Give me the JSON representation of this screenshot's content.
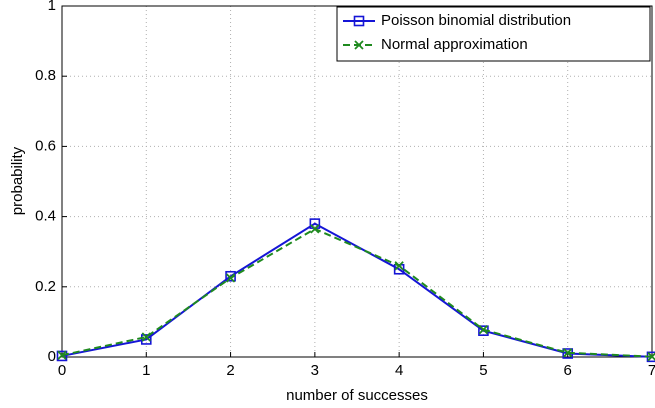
{
  "chart_data": {
    "type": "line",
    "x_label": "number of successes",
    "y_label": "probability",
    "x": [
      0,
      1,
      2,
      3,
      4,
      5,
      6,
      7
    ],
    "series": [
      {
        "name": "Poisson binomial distribution",
        "color": "#1515d6",
        "marker": "square",
        "linestyle": "solid",
        "values": [
          0.003,
          0.05,
          0.23,
          0.38,
          0.25,
          0.075,
          0.01,
          0.0005
        ]
      },
      {
        "name": "Normal approximation",
        "color": "#1f8a1f",
        "marker": "x",
        "linestyle": "dashed",
        "values": [
          0.005,
          0.057,
          0.225,
          0.365,
          0.26,
          0.078,
          0.012,
          0.001
        ]
      }
    ],
    "xlim": [
      0,
      7
    ],
    "xticks": [
      0,
      1,
      2,
      3,
      4,
      5,
      6,
      7
    ],
    "ylim": [
      0,
      1
    ],
    "yticks": [
      0,
      0.2,
      0.4,
      0.6,
      0.8,
      1
    ],
    "grid": true,
    "legend": "top-right"
  }
}
